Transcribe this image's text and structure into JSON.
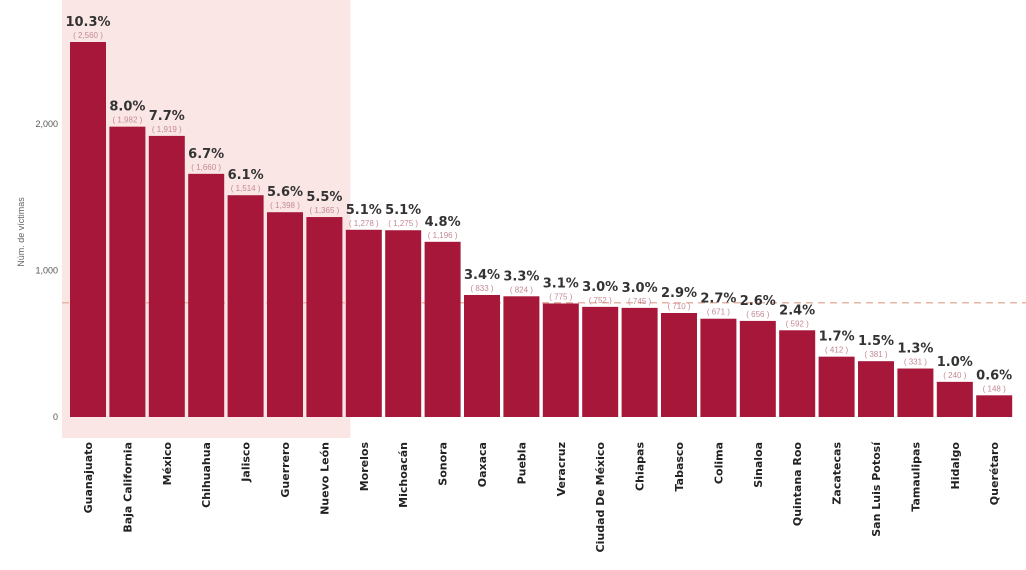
{
  "chart_data": {
    "type": "bar",
    "ylabel": "Núm. de víctimas",
    "y_ticks": [
      "0",
      "1,000",
      "2,000"
    ],
    "ylim": [
      0,
      2750
    ],
    "average_line": 780,
    "highlight_first_n": 7,
    "colors": {
      "bar": "#a6173a",
      "highlight": "#fbe6e6",
      "average_line": "#e7b5a6"
    },
    "categories": [
      "Guanajuato",
      "Baja California",
      "México",
      "Chihuahua",
      "Jalisco",
      "Guerrero",
      "Nuevo León",
      "Morelos",
      "Michoacán",
      "Sonora",
      "Oaxaca",
      "Puebla",
      "Veracruz",
      "Ciudad De México",
      "Chiapas",
      "Tabasco",
      "Colima",
      "Sinaloa",
      "Quintana Roo",
      "Zacatecas",
      "San Luis Potosí",
      "Tamaulipas",
      "Hidalgo",
      "Querétaro"
    ],
    "values": [
      2560,
      1982,
      1919,
      1660,
      1514,
      1398,
      1365,
      1278,
      1275,
      1196,
      833,
      824,
      775,
      752,
      745,
      710,
      671,
      656,
      592,
      412,
      381,
      331,
      240,
      148
    ],
    "percent_labels": [
      "10.3%",
      "8.0%",
      "7.7%",
      "6.7%",
      "6.1%",
      "5.6%",
      "5.5%",
      "5.1%",
      "5.1%",
      "4.8%",
      "3.4%",
      "3.3%",
      "3.1%",
      "3.0%",
      "3.0%",
      "2.9%",
      "2.7%",
      "2.6%",
      "2.4%",
      "1.7%",
      "1.5%",
      "1.3%",
      "1.0%",
      "0.6%"
    ],
    "count_labels": [
      "( 2,560 )",
      "( 1,982 )",
      "( 1,919 )",
      "( 1,660 )",
      "( 1,514 )",
      "( 1,398 )",
      "( 1,365 )",
      "( 1,278 )",
      "( 1,275 )",
      "( 1,196 )",
      "( 833 )",
      "( 824 )",
      "( 775 )",
      "( 752 )",
      "( 745 )",
      "( 710 )",
      "( 671 )",
      "( 656 )",
      "( 592 )",
      "( 412 )",
      "( 381 )",
      "( 331 )",
      "( 240 )",
      "( 148 )"
    ]
  }
}
